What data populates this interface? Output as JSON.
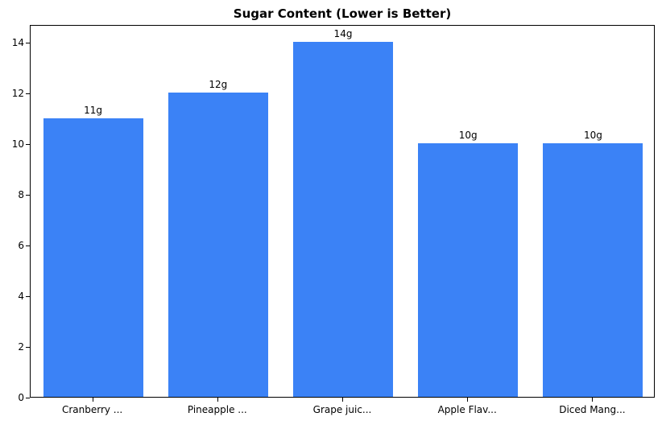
{
  "chart_data": {
    "type": "bar",
    "title": "Sugar Content (Lower is Better)",
    "categories": [
      "Cranberry ...",
      "Pineapple ...",
      "Grape juic...",
      "Apple Flav...",
      "Diced Mang..."
    ],
    "values": [
      11,
      12,
      14,
      10,
      10
    ],
    "bar_labels": [
      "11g",
      "12g",
      "14g",
      "10g",
      "10g"
    ],
    "xlabel": "",
    "ylabel": "",
    "ylim": [
      0,
      14.7
    ],
    "yticks": [
      0,
      2,
      4,
      6,
      8,
      10,
      12,
      14
    ],
    "bar_color": "#3b82f6",
    "grid": "off",
    "legend": "none",
    "frame": "full-box"
  }
}
